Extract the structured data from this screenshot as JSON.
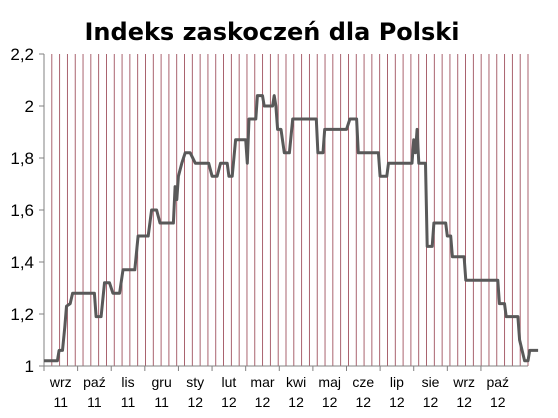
{
  "chart_data": {
    "type": "line",
    "title": "Indeks zaskoczeń dla Polski",
    "xlabel": "",
    "ylabel": "",
    "ylim": [
      1,
      2.2
    ],
    "y_ticks": [
      "1",
      "1,2",
      "1,4",
      "1,6",
      "1,8",
      "2",
      "2,2"
    ],
    "x_tick_labels": [
      {
        "month": "wrz",
        "year": "11"
      },
      {
        "month": "paź",
        "year": "11"
      },
      {
        "month": "lis",
        "year": "11"
      },
      {
        "month": "gru",
        "year": "11"
      },
      {
        "month": "sty",
        "year": "12"
      },
      {
        "month": "lut",
        "year": "12"
      },
      {
        "month": "mar",
        "year": "12"
      },
      {
        "month": "kwi",
        "year": "12"
      },
      {
        "month": "maj",
        "year": "12"
      },
      {
        "month": "cze",
        "year": "12"
      },
      {
        "month": "lip",
        "year": "12"
      },
      {
        "month": "sie",
        "year": "12"
      },
      {
        "month": "wrz",
        "year": "12"
      },
      {
        "month": "paź",
        "year": "12"
      }
    ],
    "x_range_months": [
      0,
      14.4
    ],
    "grid": "vertical",
    "series": [
      {
        "color": "#595959",
        "points": [
          [
            0.0,
            1.02
          ],
          [
            0.22,
            1.02
          ],
          [
            0.25,
            1.02
          ],
          [
            0.4,
            1.02
          ],
          [
            0.45,
            1.06
          ],
          [
            0.55,
            1.06
          ],
          [
            0.62,
            1.15
          ],
          [
            0.67,
            1.23
          ],
          [
            0.78,
            1.24
          ],
          [
            0.85,
            1.28
          ],
          [
            1.5,
            1.28
          ],
          [
            1.55,
            1.19
          ],
          [
            1.7,
            1.19
          ],
          [
            1.8,
            1.32
          ],
          [
            1.95,
            1.32
          ],
          [
            2.05,
            1.28
          ],
          [
            2.25,
            1.28
          ],
          [
            2.35,
            1.37
          ],
          [
            2.7,
            1.37
          ],
          [
            2.8,
            1.5
          ],
          [
            3.1,
            1.5
          ],
          [
            3.2,
            1.6
          ],
          [
            3.35,
            1.6
          ],
          [
            3.45,
            1.55
          ],
          [
            3.85,
            1.55
          ],
          [
            3.9,
            1.69
          ],
          [
            3.95,
            1.64
          ],
          [
            4.0,
            1.73
          ],
          [
            4.1,
            1.78
          ],
          [
            4.2,
            1.82
          ],
          [
            4.35,
            1.82
          ],
          [
            4.5,
            1.78
          ],
          [
            4.9,
            1.78
          ],
          [
            5.0,
            1.73
          ],
          [
            5.15,
            1.73
          ],
          [
            5.25,
            1.78
          ],
          [
            5.45,
            1.78
          ],
          [
            5.5,
            1.73
          ],
          [
            5.6,
            1.73
          ],
          [
            5.7,
            1.87
          ],
          [
            6.0,
            1.87
          ],
          [
            6.05,
            1.78
          ],
          [
            6.1,
            1.95
          ],
          [
            6.3,
            1.95
          ],
          [
            6.35,
            2.04
          ],
          [
            6.5,
            2.04
          ],
          [
            6.55,
            2.0
          ],
          [
            6.8,
            2.0
          ],
          [
            6.85,
            2.04
          ],
          [
            6.9,
            2.0
          ],
          [
            6.95,
            1.91
          ],
          [
            7.05,
            1.91
          ],
          [
            7.15,
            1.82
          ],
          [
            7.3,
            1.82
          ],
          [
            7.4,
            1.95
          ],
          [
            8.1,
            1.95
          ],
          [
            8.15,
            1.82
          ],
          [
            8.3,
            1.82
          ],
          [
            8.35,
            1.91
          ],
          [
            9.0,
            1.91
          ],
          [
            9.1,
            1.95
          ],
          [
            9.3,
            1.95
          ],
          [
            9.35,
            1.82
          ],
          [
            9.95,
            1.82
          ],
          [
            10.0,
            1.73
          ],
          [
            10.2,
            1.73
          ],
          [
            10.25,
            1.78
          ],
          [
            10.95,
            1.78
          ],
          [
            11.0,
            1.87
          ],
          [
            11.05,
            1.82
          ],
          [
            11.1,
            1.91
          ],
          [
            11.15,
            1.78
          ],
          [
            11.35,
            1.78
          ],
          [
            11.4,
            1.46
          ],
          [
            11.55,
            1.46
          ],
          [
            11.6,
            1.55
          ],
          [
            11.95,
            1.55
          ],
          [
            12.0,
            1.5
          ],
          [
            12.1,
            1.5
          ],
          [
            12.15,
            1.42
          ],
          [
            12.5,
            1.42
          ],
          [
            12.55,
            1.33
          ],
          [
            13.5,
            1.33
          ],
          [
            13.55,
            1.24
          ],
          [
            13.7,
            1.24
          ],
          [
            13.75,
            1.19
          ],
          [
            14.1,
            1.19
          ],
          [
            14.15,
            1.1
          ],
          [
            14.3,
            1.02
          ],
          [
            14.4,
            1.02
          ],
          [
            14.45,
            1.06
          ],
          [
            14.7,
            1.06
          ]
        ]
      }
    ]
  }
}
